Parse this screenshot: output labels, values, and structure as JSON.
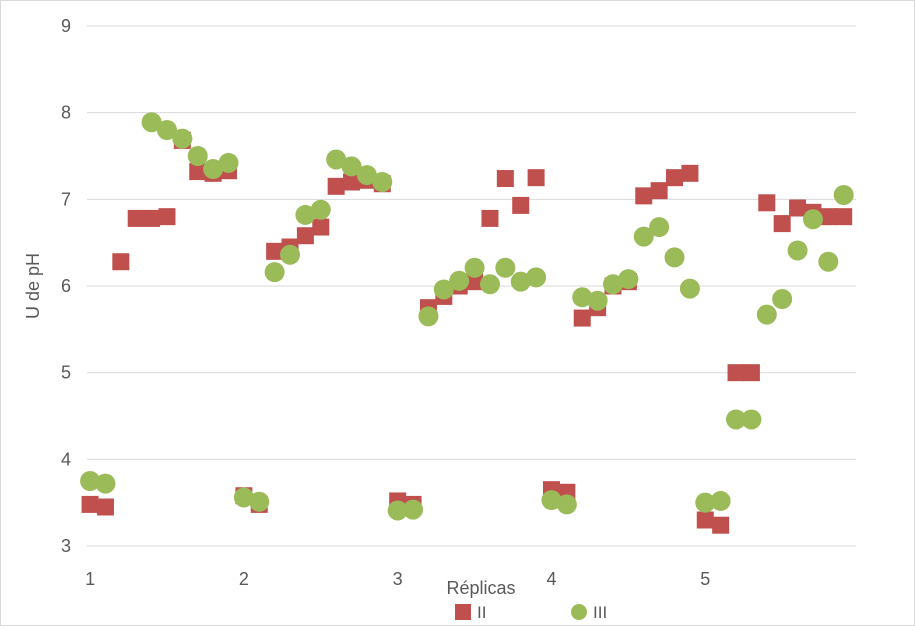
{
  "chart_data": {
    "type": "scatter",
    "xlabel": "Réplicas",
    "ylabel": "U de pH",
    "xlim": [
      0.98,
      5.98
    ],
    "ylim": [
      3,
      9
    ],
    "xticks": [
      "1",
      "2",
      "3",
      "4",
      "5"
    ],
    "yticks": [
      "3",
      "4",
      "5",
      "6",
      "7",
      "8",
      "9"
    ],
    "grid": "horizontal",
    "legend_position": "bottom",
    "series": [
      {
        "name": "II",
        "color": "#c0504d",
        "marker": "square",
        "points": [
          [
            1.0,
            3.48
          ],
          [
            1.1,
            3.45
          ],
          [
            1.2,
            6.28
          ],
          [
            1.3,
            6.78
          ],
          [
            1.4,
            6.78
          ],
          [
            1.5,
            6.8
          ],
          [
            1.6,
            7.68
          ],
          [
            1.7,
            7.32
          ],
          [
            1.8,
            7.3
          ],
          [
            1.9,
            7.33
          ],
          [
            2.0,
            3.58
          ],
          [
            2.1,
            3.48
          ],
          [
            2.2,
            6.4
          ],
          [
            2.3,
            6.45
          ],
          [
            2.4,
            6.58
          ],
          [
            2.5,
            6.68
          ],
          [
            2.6,
            7.15
          ],
          [
            2.7,
            7.2
          ],
          [
            2.8,
            7.22
          ],
          [
            2.9,
            7.18
          ],
          [
            3.0,
            3.52
          ],
          [
            3.1,
            3.48
          ],
          [
            3.2,
            5.75
          ],
          [
            3.3,
            5.88
          ],
          [
            3.4,
            6.0
          ],
          [
            3.5,
            6.05
          ],
          [
            3.6,
            6.78
          ],
          [
            3.7,
            7.24
          ],
          [
            3.8,
            6.93
          ],
          [
            3.9,
            7.25
          ],
          [
            4.0,
            3.65
          ],
          [
            4.1,
            3.62
          ],
          [
            4.2,
            5.63
          ],
          [
            4.3,
            5.75
          ],
          [
            4.4,
            6.0
          ],
          [
            4.5,
            6.05
          ],
          [
            4.6,
            7.04
          ],
          [
            4.7,
            7.1
          ],
          [
            4.8,
            7.25
          ],
          [
            4.9,
            7.3
          ],
          [
            5.0,
            3.3
          ],
          [
            5.1,
            3.24
          ],
          [
            5.2,
            5.0
          ],
          [
            5.3,
            5.0
          ],
          [
            5.4,
            6.96
          ],
          [
            5.5,
            6.72
          ],
          [
            5.6,
            6.9
          ],
          [
            5.7,
            6.85
          ],
          [
            5.8,
            6.8
          ],
          [
            5.9,
            6.8
          ]
        ]
      },
      {
        "name": "III",
        "color": "#9bbb59",
        "marker": "circle",
        "points": [
          [
            1.0,
            3.75
          ],
          [
            1.1,
            3.72
          ],
          [
            1.4,
            7.89
          ],
          [
            1.5,
            7.8
          ],
          [
            1.6,
            7.7
          ],
          [
            1.7,
            7.5
          ],
          [
            1.8,
            7.35
          ],
          [
            1.9,
            7.42
          ],
          [
            2.0,
            3.56
          ],
          [
            2.1,
            3.51
          ],
          [
            2.2,
            6.16
          ],
          [
            2.3,
            6.36
          ],
          [
            2.4,
            6.82
          ],
          [
            2.5,
            6.88
          ],
          [
            2.6,
            7.46
          ],
          [
            2.7,
            7.38
          ],
          [
            2.8,
            7.28
          ],
          [
            2.9,
            7.2
          ],
          [
            3.0,
            3.41
          ],
          [
            3.1,
            3.42
          ],
          [
            3.2,
            5.65
          ],
          [
            3.3,
            5.96
          ],
          [
            3.4,
            6.06
          ],
          [
            3.5,
            6.21
          ],
          [
            3.6,
            6.02
          ],
          [
            3.7,
            6.21
          ],
          [
            3.8,
            6.05
          ],
          [
            3.9,
            6.1
          ],
          [
            4.0,
            3.53
          ],
          [
            4.1,
            3.48
          ],
          [
            4.2,
            5.87
          ],
          [
            4.3,
            5.83
          ],
          [
            4.4,
            6.02
          ],
          [
            4.5,
            6.08
          ],
          [
            4.6,
            6.57
          ],
          [
            4.7,
            6.68
          ],
          [
            4.8,
            6.33
          ],
          [
            4.9,
            5.97
          ],
          [
            5.0,
            3.5
          ],
          [
            5.1,
            3.52
          ],
          [
            5.2,
            4.46
          ],
          [
            5.3,
            4.46
          ],
          [
            5.4,
            5.67
          ],
          [
            5.5,
            5.85
          ],
          [
            5.6,
            6.41
          ],
          [
            5.7,
            6.77
          ],
          [
            5.8,
            6.28
          ],
          [
            5.9,
            7.05
          ]
        ]
      }
    ]
  }
}
